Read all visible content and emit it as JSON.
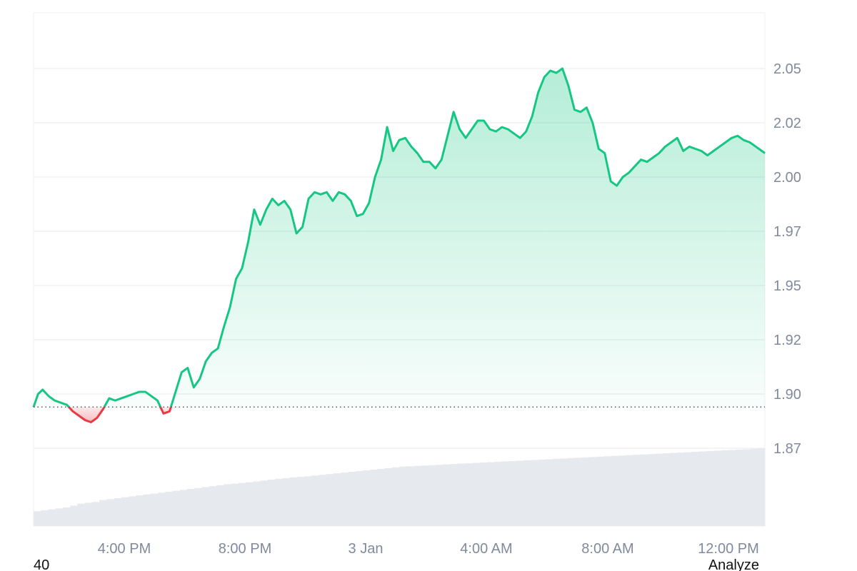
{
  "chart_data": {
    "type": "area",
    "title": "",
    "xlabel": "",
    "ylabel": "",
    "x_tick_labels": [
      "4:00 PM",
      "8:00 PM",
      "3 Jan",
      "4:00 AM",
      "8:00 AM",
      "12:00 PM"
    ],
    "y_tick_labels": [
      "2.05",
      "2.02",
      "2.00",
      "1.97",
      "1.95",
      "1.92",
      "1.90",
      "1.87"
    ],
    "y_ticks": [
      2.05,
      2.025,
      2.0,
      1.975,
      1.95,
      1.925,
      1.9,
      1.875
    ],
    "ylim": [
      1.875,
      2.075
    ],
    "x_hours_range": [
      0,
      24.2
    ],
    "baseline": 1.894,
    "grid": true,
    "colors": {
      "up_line": "#16c784",
      "down_line": "#ea3943",
      "baseline_dots": "#505866",
      "volume": "#e6e9ee",
      "grid": "#eef0f3",
      "axis_text": "#808a9d"
    },
    "series": [
      {
        "x": [
          0.0,
          0.15,
          0.3,
          0.5,
          0.7,
          0.9,
          1.1,
          1.3,
          1.5,
          1.7,
          1.9,
          2.1,
          2.3,
          2.5,
          2.7,
          2.9,
          3.1,
          3.3,
          3.5,
          3.7,
          3.9,
          4.1,
          4.3,
          4.5,
          4.7,
          4.9,
          5.1,
          5.3,
          5.5,
          5.7,
          5.9,
          6.1,
          6.3,
          6.5,
          6.7,
          6.9,
          7.1,
          7.3,
          7.5,
          7.7,
          7.9,
          8.1,
          8.3,
          8.5,
          8.7,
          8.9,
          9.1,
          9.3,
          9.5,
          9.7,
          9.9,
          10.1,
          10.3,
          10.5,
          10.7,
          10.9,
          11.1,
          11.3,
          11.5,
          11.7,
          11.9,
          12.1,
          12.3,
          12.5,
          12.7,
          12.9,
          13.1,
          13.3,
          13.5,
          13.7,
          13.9,
          14.1,
          14.3,
          14.5,
          14.7,
          14.9,
          15.1,
          15.3,
          15.5,
          15.7,
          15.9,
          16.1,
          16.3,
          16.5,
          16.7,
          16.9,
          17.1,
          17.3,
          17.5,
          17.7,
          17.9,
          18.1,
          18.3,
          18.5,
          18.7,
          18.9,
          19.1,
          19.3,
          19.5,
          19.7,
          19.9,
          20.1,
          20.3,
          20.5,
          20.7,
          20.9,
          21.1,
          21.3,
          21.5,
          21.7,
          21.9,
          22.1,
          22.3,
          22.5,
          22.7,
          22.9,
          23.1,
          23.3,
          23.5,
          23.7,
          23.9,
          24.1,
          24.2
        ],
        "values": [
          1.894,
          1.9,
          1.902,
          1.899,
          1.897,
          1.896,
          1.895,
          1.892,
          1.89,
          1.888,
          1.887,
          1.889,
          1.893,
          1.898,
          1.897,
          1.898,
          1.899,
          1.9,
          1.901,
          1.901,
          1.899,
          1.897,
          1.891,
          1.892,
          1.901,
          1.91,
          1.912,
          1.903,
          1.907,
          1.915,
          1.919,
          1.921,
          1.931,
          1.94,
          1.953,
          1.958,
          1.97,
          1.985,
          1.978,
          1.985,
          1.99,
          1.987,
          1.989,
          1.985,
          1.974,
          1.977,
          1.99,
          1.993,
          1.992,
          1.993,
          1.989,
          1.993,
          1.992,
          1.989,
          1.982,
          1.983,
          1.988,
          2.0,
          2.008,
          2.023,
          2.012,
          2.017,
          2.018,
          2.014,
          2.011,
          2.007,
          2.007,
          2.004,
          2.008,
          2.019,
          2.03,
          2.022,
          2.018,
          2.022,
          2.026,
          2.026,
          2.022,
          2.021,
          2.023,
          2.022,
          2.02,
          2.018,
          2.021,
          2.028,
          2.039,
          2.046,
          2.049,
          2.048,
          2.05,
          2.042,
          2.031,
          2.03,
          2.032,
          2.025,
          2.013,
          2.011,
          1.998,
          1.996,
          2.0,
          2.002,
          2.005,
          2.008,
          2.007,
          2.009,
          2.011,
          2.014,
          2.016,
          2.018,
          2.012,
          2.014,
          2.013,
          2.012,
          2.01,
          2.012,
          2.014,
          2.016,
          2.018,
          2.019,
          2.017,
          2.016,
          2.014,
          2.012,
          2.011
        ]
      }
    ],
    "volume": {
      "values": [
        0.08,
        0.085,
        0.09,
        0.095,
        0.1,
        0.11,
        0.12,
        0.125,
        0.13,
        0.14,
        0.145,
        0.15,
        0.155,
        0.16,
        0.165,
        0.17,
        0.175,
        0.18,
        0.185,
        0.19,
        0.195,
        0.2,
        0.205,
        0.21,
        0.215,
        0.22,
        0.225,
        0.228,
        0.232,
        0.236,
        0.24,
        0.245,
        0.25,
        0.254,
        0.258,
        0.262,
        0.265,
        0.268,
        0.272,
        0.276,
        0.28,
        0.284,
        0.288,
        0.292,
        0.296,
        0.3,
        0.304,
        0.308,
        0.312,
        0.316,
        0.32,
        0.322,
        0.324,
        0.326,
        0.328,
        0.33,
        0.332,
        0.334,
        0.336,
        0.338,
        0.34,
        0.342,
        0.344,
        0.346,
        0.348,
        0.35,
        0.352,
        0.354,
        0.356,
        0.358,
        0.36,
        0.362,
        0.364,
        0.366,
        0.368,
        0.37,
        0.372,
        0.374,
        0.376,
        0.378,
        0.38,
        0.382,
        0.384,
        0.386,
        0.388,
        0.39,
        0.392,
        0.394,
        0.396,
        0.398,
        0.4,
        0.402,
        0.404,
        0.406,
        0.408,
        0.41,
        0.412,
        0.414,
        0.416,
        0.418
      ]
    }
  },
  "footer": {
    "left_text": "40",
    "right_text": "Analyze"
  }
}
